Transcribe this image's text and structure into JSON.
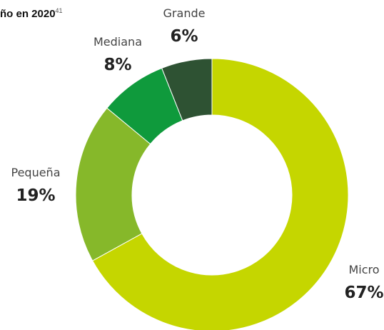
{
  "title": "ño en 2020",
  "title_superscript": "41",
  "chart_data": {
    "type": "pie",
    "variant": "donut",
    "title": "ño en 2020",
    "unit": "%",
    "slices": [
      {
        "label": "Micro",
        "value": 67,
        "display": "67%",
        "color": "#c5d600"
      },
      {
        "label": "Pequeña",
        "value": 19,
        "display": "19%",
        "color": "#86b82a"
      },
      {
        "label": "Mediana",
        "value": 8,
        "display": "8%",
        "color": "#0f9a3c"
      },
      {
        "label": "Grande",
        "value": 6,
        "display": "6%",
        "color": "#2e5233"
      }
    ],
    "start": "top",
    "direction": "clockwise"
  }
}
